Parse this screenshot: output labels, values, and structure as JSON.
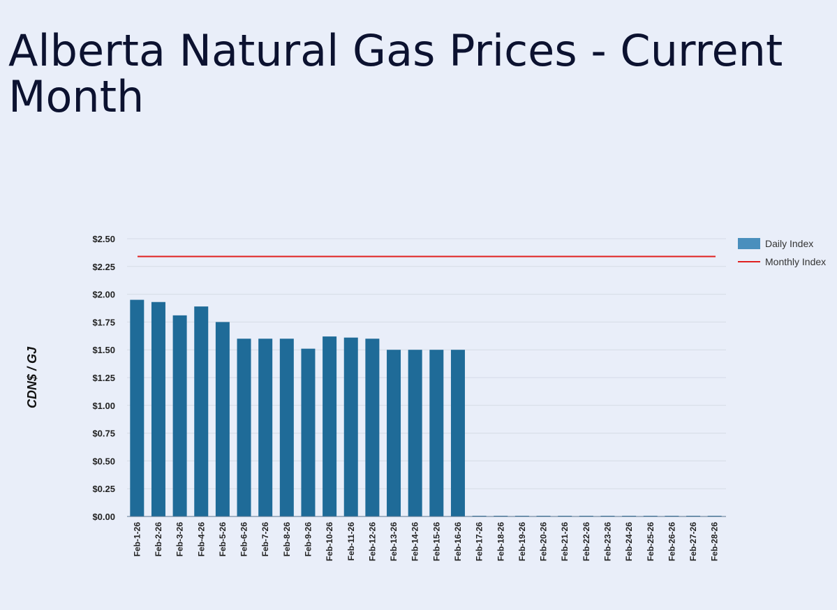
{
  "title": "Alberta Natural Gas Prices - Current Month",
  "chart_data": {
    "type": "bar",
    "title": "Alberta Natural Gas Prices - Current Month",
    "xlabel": "",
    "ylabel": "CDN$ / GJ",
    "ylim": [
      0,
      2.5
    ],
    "yticks": [
      "$0.00",
      "$0.25",
      "$0.50",
      "$0.75",
      "$1.00",
      "$1.25",
      "$1.50",
      "$1.75",
      "$2.00",
      "$2.25",
      "$2.50"
    ],
    "grid": true,
    "legend_position": "top-right",
    "categories": [
      "Feb-1-26",
      "Feb-2-26",
      "Feb-3-26",
      "Feb-4-26",
      "Feb-5-26",
      "Feb-6-26",
      "Feb-7-26",
      "Feb-8-26",
      "Feb-9-26",
      "Feb-10-26",
      "Feb-11-26",
      "Feb-12-26",
      "Feb-13-26",
      "Feb-14-26",
      "Feb-15-26",
      "Feb-16-26",
      "Feb-17-26",
      "Feb-18-26",
      "Feb-19-26",
      "Feb-20-26",
      "Feb-21-26",
      "Feb-22-26",
      "Feb-23-26",
      "Feb-24-26",
      "Feb-25-26",
      "Feb-26-26",
      "Feb-27-26",
      "Feb-28-26"
    ],
    "series": [
      {
        "name": "Daily Index",
        "type": "bar",
        "color": "#1f6b98",
        "values": [
          1.95,
          1.93,
          1.81,
          1.89,
          1.75,
          1.6,
          1.6,
          1.6,
          1.51,
          1.62,
          1.61,
          1.6,
          1.5,
          1.5,
          1.5,
          1.5,
          0,
          0,
          0,
          0,
          0,
          0,
          0,
          0,
          0,
          0,
          0,
          0
        ]
      },
      {
        "name": "Monthly Index",
        "type": "line",
        "color": "#e02020",
        "value": 2.34
      }
    ]
  }
}
